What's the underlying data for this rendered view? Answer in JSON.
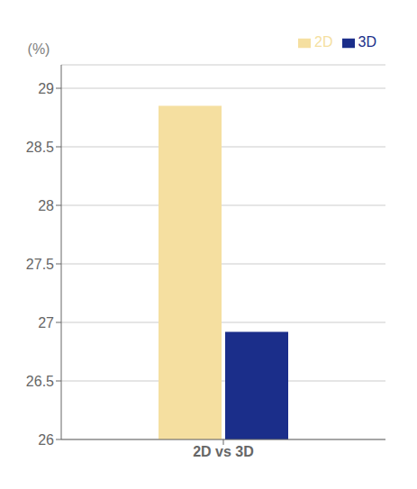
{
  "chart_data": {
    "type": "bar",
    "categories": [
      "2D vs 3D"
    ],
    "series": [
      {
        "name": "2D",
        "color": "#F5DFA0",
        "values": [
          28.85
        ]
      },
      {
        "name": "3D",
        "color": "#1B2E8A",
        "values": [
          26.92
        ]
      }
    ],
    "ylabel": "(%)",
    "ylim": [
      26,
      29.2
    ],
    "yticks": [
      26,
      26.5,
      27,
      27.5,
      28,
      28.5,
      29
    ],
    "grid": true,
    "legend": "upper right"
  }
}
